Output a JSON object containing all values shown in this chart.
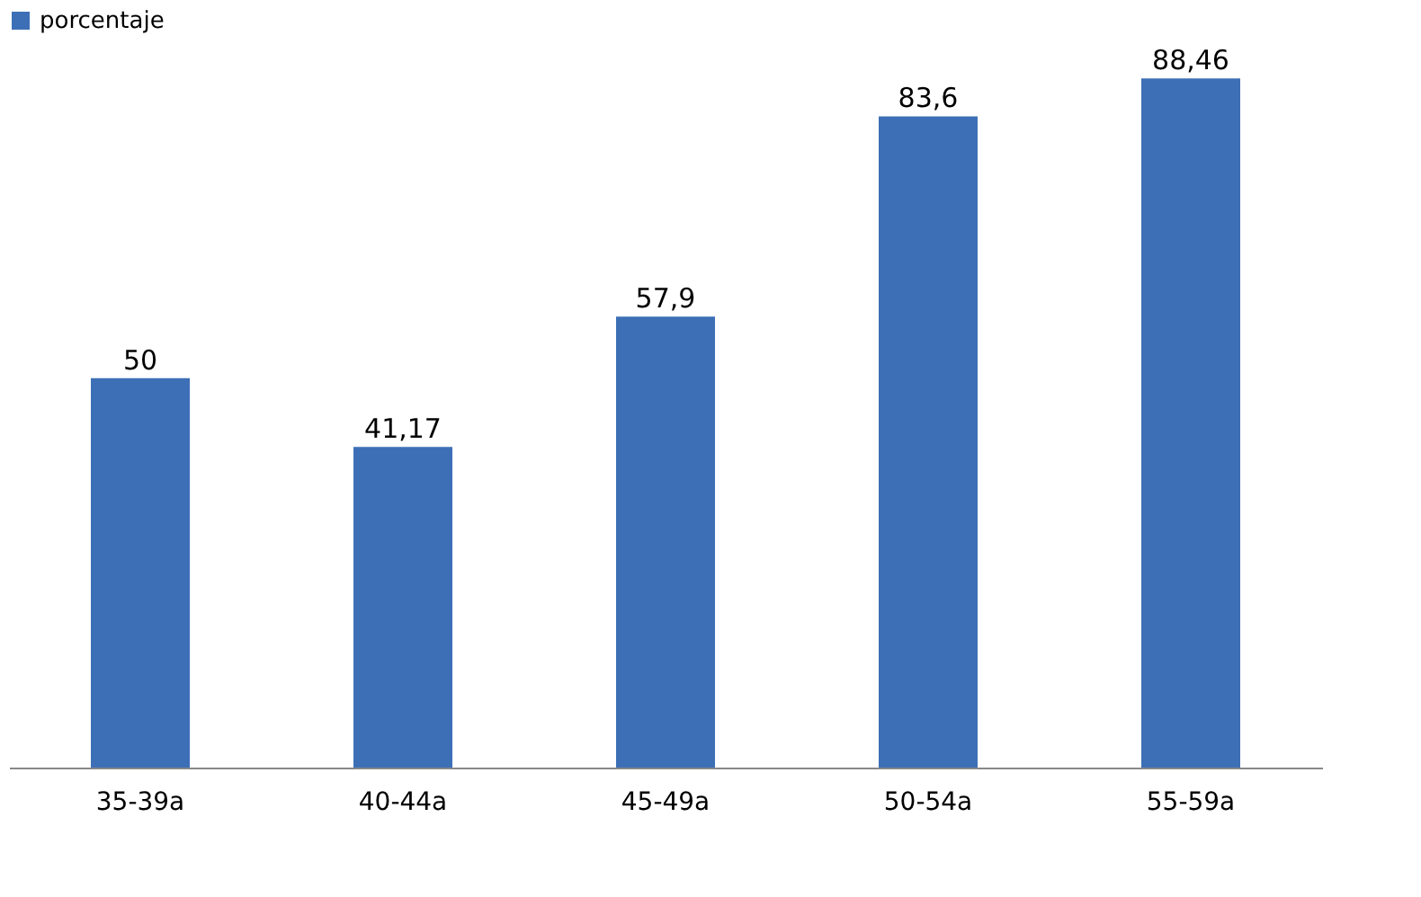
{
  "chart_data": {
    "type": "bar",
    "categories": [
      "35-39a",
      "40-44a",
      "45-49a",
      "50-54a",
      "55-59a"
    ],
    "series": [
      {
        "name": "porcentaje",
        "color": "#3d6fb6",
        "values": [
          50,
          41.17,
          57.9,
          83.6,
          88.46
        ],
        "value_labels": [
          "50",
          "41,17",
          "57,9",
          "83,6",
          "88,46"
        ]
      }
    ],
    "legend": "top",
    "tick_labels": "x",
    "grid": false
  }
}
